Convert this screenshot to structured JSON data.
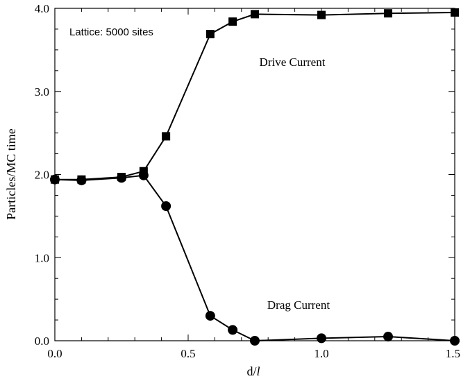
{
  "chart_data": {
    "type": "line",
    "title": "",
    "xlabel": "d/",
    "xlabel_italic": "l",
    "ylabel": "Particles/MC time",
    "xlim": [
      0.0,
      1.5
    ],
    "ylim": [
      0.0,
      4.0
    ],
    "x_ticks": [
      0.0,
      0.5,
      1.0,
      1.5
    ],
    "x_tick_labels": [
      "0.0",
      "0.5",
      "1.0",
      "1.5"
    ],
    "y_ticks": [
      0.0,
      1.0,
      2.0,
      3.0,
      4.0
    ],
    "y_tick_labels": [
      "0.0",
      "1.0",
      "2.0",
      "3.0",
      "4.0"
    ],
    "grid": false,
    "annotations": {
      "lattice": "Lattice: 5000 sites",
      "drive": "Drive Current",
      "drag": "Drag Current"
    },
    "series": [
      {
        "name": "Drive Current",
        "marker": "square",
        "color": "#000000",
        "x": [
          0.0,
          0.1,
          0.25,
          0.333,
          0.417,
          0.583,
          0.667,
          0.75,
          1.0,
          1.25,
          1.5
        ],
        "y": [
          1.94,
          1.94,
          1.97,
          2.04,
          2.46,
          3.69,
          3.84,
          3.93,
          3.92,
          3.94,
          3.95
        ]
      },
      {
        "name": "Drag Current",
        "marker": "circle",
        "color": "#000000",
        "x": [
          0.0,
          0.1,
          0.25,
          0.333,
          0.417,
          0.583,
          0.667,
          0.75,
          1.0,
          1.25,
          1.5
        ],
        "y": [
          1.94,
          1.93,
          1.96,
          1.99,
          1.62,
          0.3,
          0.13,
          0.0,
          0.03,
          0.05,
          0.0
        ]
      }
    ]
  }
}
